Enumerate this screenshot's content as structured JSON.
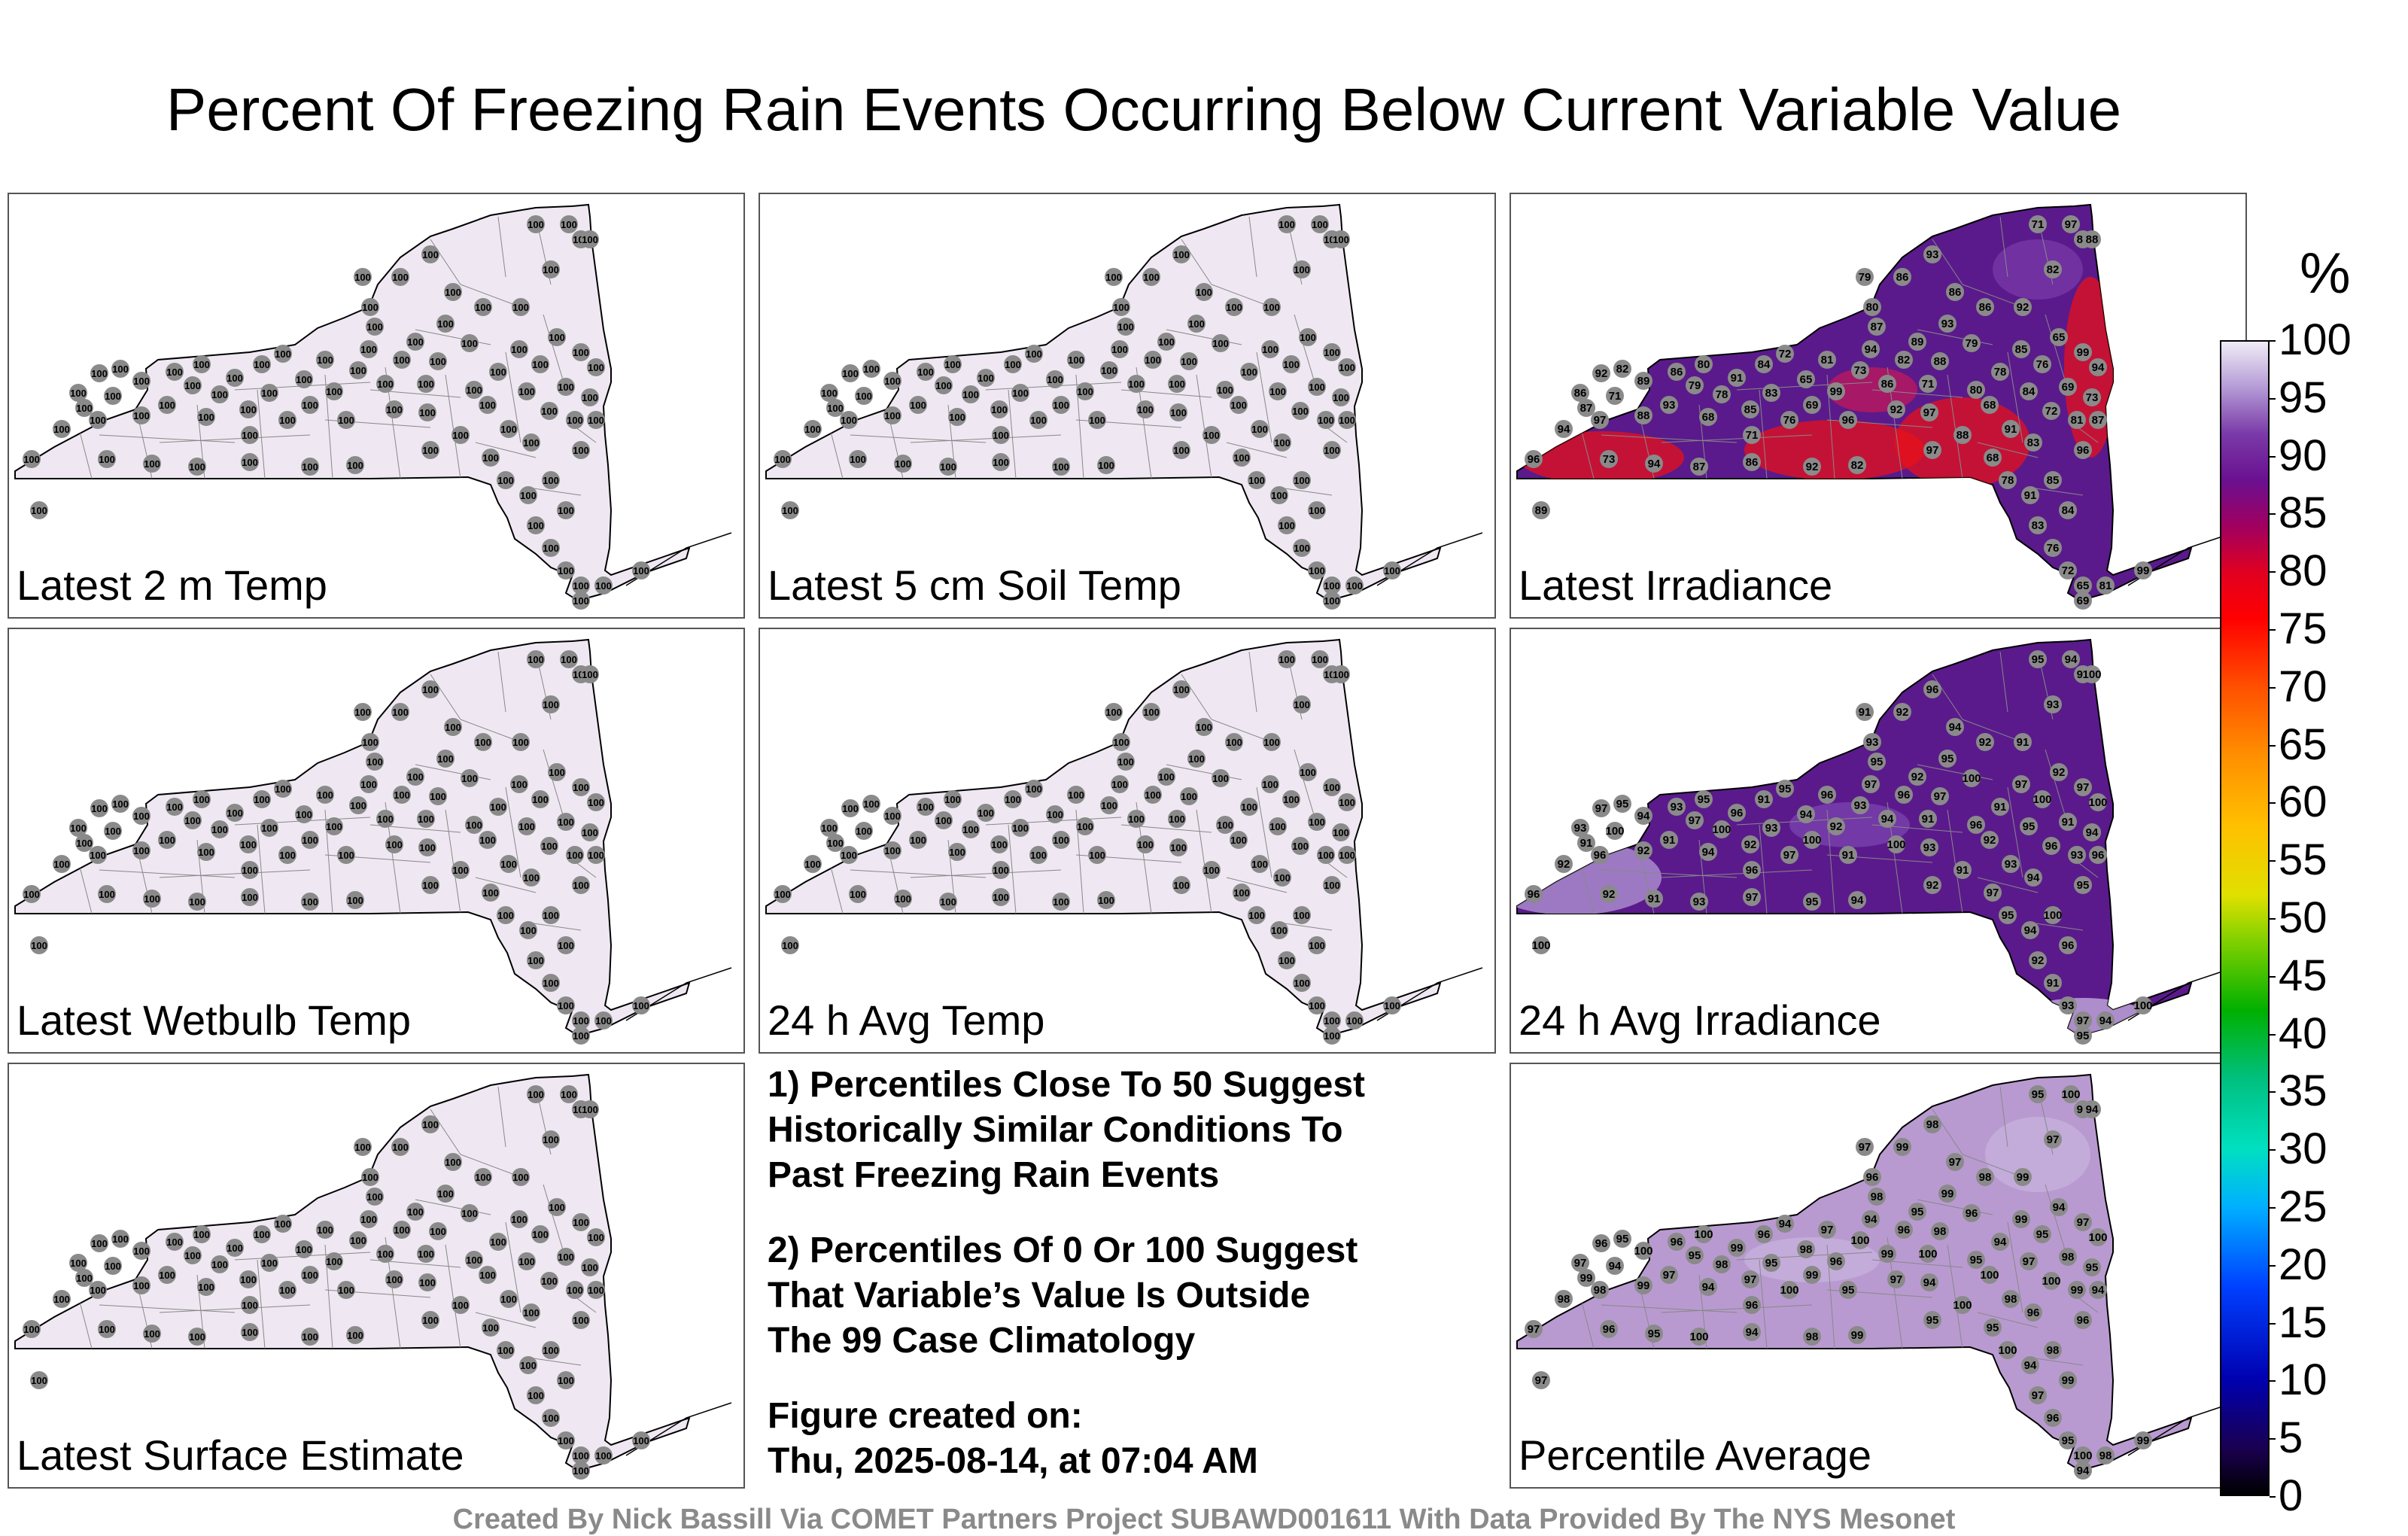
{
  "title": "Percent Of Freezing Rain Events Occurring Below Current Variable Value",
  "panels": [
    {
      "label": "Latest 2 m Temp",
      "mode": "white",
      "values": [
        "100"
      ]
    },
    {
      "label": "Latest 5 cm Soil Temp",
      "mode": "white",
      "values": [
        "100"
      ]
    },
    {
      "label": "Latest Irradiance",
      "mode": "irradiance",
      "values": [
        "94",
        "87",
        "86",
        "92",
        "82",
        "89",
        "71",
        "97",
        "88",
        "93",
        "86",
        "79",
        "80",
        "68",
        "78",
        "91",
        "85",
        "84",
        "83",
        "76",
        "72",
        "65",
        "69",
        "81",
        "99",
        "96",
        "73"
      ]
    },
    {
      "label": "Latest Wetbulb Temp",
      "mode": "white",
      "values": [
        "100"
      ]
    },
    {
      "label": "24 h Avg Temp",
      "mode": "white",
      "values": [
        "100"
      ]
    },
    {
      "label": "24 h Avg Irradiance",
      "mode": "avgirr",
      "values": [
        "92",
        "91",
        "93",
        "97",
        "95",
        "94",
        "100",
        "96"
      ]
    },
    {
      "label": "Latest Surface Estimate",
      "mode": "white",
      "values": [
        "100"
      ]
    },
    {
      "label": "Percentile Average",
      "mode": "average",
      "values": [
        "98",
        "99",
        "97",
        "96",
        "95",
        "100",
        "94"
      ]
    }
  ],
  "notes": {
    "note1": [
      "1) Percentiles Close To 50 Suggest",
      "Historically Similar Conditions To",
      "Past Freezing Rain Events"
    ],
    "note2": [
      "2) Percentiles Of 0 Or 100 Suggest",
      "That Variable’s Value Is Outside",
      "The 99 Case Climatology"
    ],
    "created": [
      "Figure created on:",
      "Thu, 2025-08-14, at 07:04 AM"
    ]
  },
  "legend": {
    "unit": "%",
    "ticks": [
      "100",
      "95",
      "90",
      "85",
      "80",
      "75",
      "70",
      "65",
      "60",
      "55",
      "50",
      "45",
      "40",
      "35",
      "30",
      "25",
      "20",
      "15",
      "10",
      "5",
      "0"
    ]
  },
  "credit": "Created By Nick Bassill Via COMET Partners Project SUBAWD001611 With Data Provided By The NYS Mesonet",
  "colors": {
    "white_fill": "#efe8f2",
    "purple_dark": "#5a1a8c",
    "purple_light": "#b89ad0",
    "red": "#e8101a",
    "station": "#8a8a8a"
  }
}
